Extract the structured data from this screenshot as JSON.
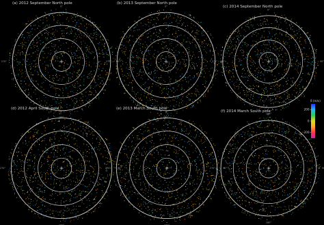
{
  "chart_data": {
    "type": "scatter",
    "projection": "polar",
    "panels": [
      {
        "title": "(a) 2012 September North pole",
        "ticks": {
          "top": "0°",
          "left": "270°",
          "right": "90°",
          "bottom": "180°"
        }
      },
      {
        "title": "(b) 2013 September North pole",
        "ticks": {
          "top": "0°",
          "left": "270°",
          "right": "90°",
          "bottom": "180°"
        }
      },
      {
        "title": "(c) 2014 September North pole",
        "ticks": {
          "top": "0°",
          "left": "270°",
          "right": "90°",
          "bottom": "180°"
        }
      },
      {
        "title": "(d) 2012 April South pole",
        "ticks": {
          "top": "0°",
          "left": "270°",
          "right": "90°",
          "bottom": "180°"
        }
      },
      {
        "title": "(e) 2013 March South pole",
        "ticks": {
          "top": "0°",
          "left": "270°",
          "right": "90°",
          "bottom": "180°"
        }
      },
      {
        "title": "(f) 2014 March South pole",
        "ticks": {
          "top": "0°",
          "left": "270°",
          "right": "90°",
          "bottom": "180°"
        }
      }
    ],
    "colorbar": {
      "label": "δ (m/s)",
      "ticks": [
        "200",
        "0",
        "-200"
      ],
      "range": [
        -300,
        300
      ],
      "colors": [
        "#2233ff",
        "#22bbee",
        "#33cc55",
        "#dddd22",
        "#ffaa22",
        "#ff3355",
        "#cc22aa"
      ]
    }
  }
}
